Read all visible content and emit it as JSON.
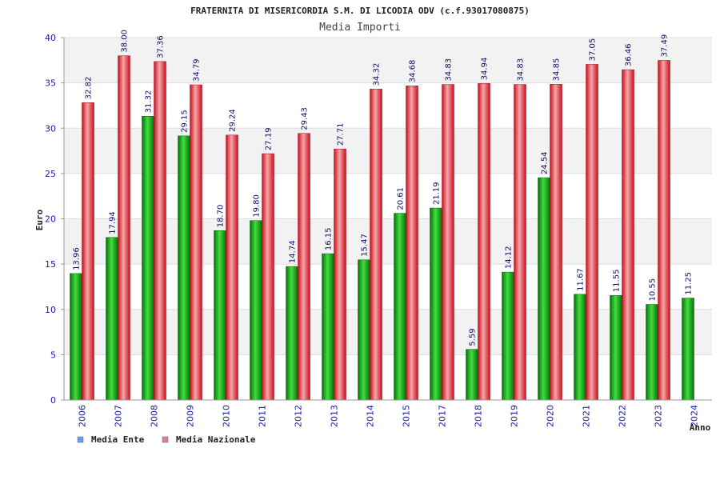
{
  "chart_data": {
    "type": "bar",
    "title": "FRATERNITA DI MISERICORDIA S.M. DI LICODIA ODV (c.f.93017080875)",
    "subtitle": "Media Importi",
    "xlabel": "Anno",
    "ylabel": "Euro",
    "ylim": [
      0,
      40
    ],
    "yticks": [
      0,
      5,
      10,
      15,
      20,
      25,
      30,
      35,
      40
    ],
    "grid": true,
    "legend_position": "bottom-left",
    "categories": [
      "2006",
      "2007",
      "2008",
      "2009",
      "2010",
      "2011",
      "2012",
      "2013",
      "2014",
      "2015",
      "2017",
      "2018",
      "2019",
      "2020",
      "2021",
      "2022",
      "2023",
      "2024"
    ],
    "series": [
      {
        "name": "Media Ente",
        "color": "#1fae1f",
        "legend_color": "#5fa0f0",
        "values": [
          13.96,
          17.94,
          31.32,
          29.15,
          18.7,
          19.8,
          14.74,
          16.15,
          15.47,
          20.61,
          21.19,
          5.59,
          14.12,
          24.54,
          11.67,
          11.55,
          10.55,
          11.25
        ],
        "labels": [
          "13.96",
          "17.94",
          "31.32",
          "29.15",
          "18.70",
          "19.80",
          "14.74",
          "16.15",
          "15.47",
          "20.61",
          "21.19",
          "5.59",
          "14.12",
          "24.54",
          "11.67",
          "11.55",
          "10.55",
          "11.25"
        ]
      },
      {
        "name": "Media Nazionale",
        "color": "#e8232e",
        "legend_color": "#e07aa8",
        "values": [
          32.82,
          38.0,
          37.36,
          34.79,
          29.24,
          27.19,
          29.43,
          27.71,
          34.32,
          34.68,
          34.83,
          34.94,
          34.83,
          34.85,
          37.05,
          36.46,
          37.49,
          null
        ],
        "labels": [
          "32.82",
          "38.00",
          "37.36",
          "34.79",
          "29.24",
          "27.19",
          "29.43",
          "27.71",
          "34.32",
          "34.68",
          "34.83",
          "34.94",
          "34.83",
          "34.85",
          "37.05",
          "36.46",
          "37.49",
          ""
        ]
      }
    ]
  }
}
